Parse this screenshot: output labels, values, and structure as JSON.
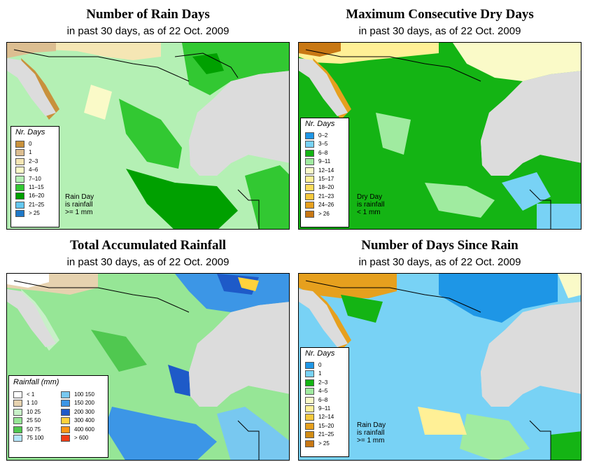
{
  "panels": [
    {
      "title": "Number of Rain Days",
      "subtitle": "in past 30 days, as of  22 Oct. 2009",
      "legend_title": "Nr. Days",
      "legend": [
        {
          "label": "0",
          "color": "#c8913c"
        },
        {
          "label": "1",
          "color": "#dcbe91"
        },
        {
          "label": "2–3",
          "color": "#f5e6b4"
        },
        {
          "label": "4–6",
          "color": "#fafac8"
        },
        {
          "label": "7–10",
          "color": "#b4f0b4"
        },
        {
          "label": "11–15",
          "color": "#32c832"
        },
        {
          "label": "16–20",
          "color": "#00a000"
        },
        {
          "label": "21–25",
          "color": "#64c8f0"
        },
        {
          "label": "> 25",
          "color": "#1e78c8"
        }
      ],
      "note_lines": [
        "Rain Day",
        "is rainfall",
        ">= 1 mm"
      ]
    },
    {
      "title": "Maximum Consecutive Dry Days",
      "subtitle": "in past 30 days, as of  22 Oct. 2009",
      "legend_title": "Nr. Days",
      "legend": [
        {
          "label": "0–2",
          "color": "#1e96e6"
        },
        {
          "label": "3–5",
          "color": "#78d2f5"
        },
        {
          "label": "6–8",
          "color": "#14b414"
        },
        {
          "label": "9–11",
          "color": "#a0eba0"
        },
        {
          "label": "12–14",
          "color": "#fafac8"
        },
        {
          "label": "15–17",
          "color": "#fff096"
        },
        {
          "label": "18–20",
          "color": "#ffdc5a"
        },
        {
          "label": "21–23",
          "color": "#f5c83c"
        },
        {
          "label": "24–26",
          "color": "#e6a01e"
        },
        {
          "label": "> 26",
          "color": "#c87814"
        }
      ],
      "note_lines": [
        "Dry Day",
        "is rainfall",
        "< 1 mm"
      ]
    },
    {
      "title": "Total Accumulated Rainfall",
      "subtitle": "in past 30 days, as of  22 Oct. 2009",
      "legend_title": "Rainfall (mm)",
      "legend": [
        {
          "label": "< 1",
          "color": "#ffffff"
        },
        {
          "label": "1    10",
          "color": "#e6d2af"
        },
        {
          "label": "10    25",
          "color": "#c8f0c8"
        },
        {
          "label": "25    50",
          "color": "#96e696"
        },
        {
          "label": "50    75",
          "color": "#50c850"
        },
        {
          "label": "75   100",
          "color": "#b4e6fa"
        },
        {
          "label": "100   150",
          "color": "#78c8f0"
        },
        {
          "label": "150   200",
          "color": "#3c96e6"
        },
        {
          "label": "200   300",
          "color": "#1e5ac8"
        },
        {
          "label": "300   400",
          "color": "#ffd23c"
        },
        {
          "label": "400   600",
          "color": "#ff9614"
        },
        {
          "label": "> 600",
          "color": "#f03c14"
        }
      ],
      "note_lines": []
    },
    {
      "title": "Number of Days Since Rain",
      "subtitle": "in past 30 days, as of  22 Oct. 2009",
      "legend_title": "Nr. Days",
      "legend": [
        {
          "label": "0",
          "color": "#1e96e6"
        },
        {
          "label": "1",
          "color": "#78d2f5"
        },
        {
          "label": "2–3",
          "color": "#14b414"
        },
        {
          "label": "4–5",
          "color": "#a0eba0"
        },
        {
          "label": "6–8",
          "color": "#fafac8"
        },
        {
          "label": "9–11",
          "color": "#fff096"
        },
        {
          "label": "12–14",
          "color": "#f5c83c"
        },
        {
          "label": "15–20",
          "color": "#e6a01e"
        },
        {
          "label": "21–25",
          "color": "#d28c14"
        },
        {
          "label": "> 25",
          "color": "#c87814"
        }
      ],
      "note_lines": [
        "Rain Day",
        "is rainfall",
        ">= 1 mm"
      ]
    }
  ]
}
